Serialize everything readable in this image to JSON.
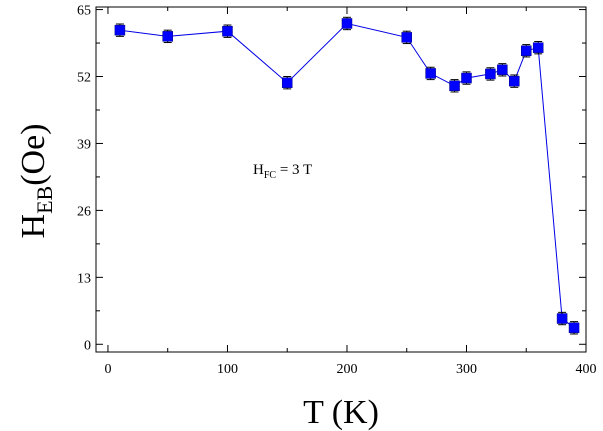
{
  "chart_data": {
    "type": "line",
    "title": "",
    "xlabel": "T (K)",
    "ylabel_main": "H",
    "ylabel_sub": "EB",
    "ylabel_tail": "(Oe)",
    "xlim": [
      -10,
      400
    ],
    "ylim": [
      -1.5,
      65.5
    ],
    "xticks": [
      0,
      100,
      200,
      300,
      400
    ],
    "yticks": [
      0,
      13,
      26,
      39,
      52,
      65
    ],
    "grid": false,
    "legend": "none",
    "marker": "square",
    "line_color": "#0000e6",
    "marker_color": "#0000ff",
    "annotation": {
      "main": "H",
      "sub": "FC",
      "tail": " = 3 T"
    },
    "series": [
      {
        "x": [
          10,
          50,
          100,
          150,
          200,
          250,
          270,
          290,
          300,
          320,
          330,
          340,
          350,
          360,
          380,
          390
        ],
        "y": [
          61.0,
          59.8,
          60.8,
          50.8,
          62.3,
          59.6,
          52.6,
          50.2,
          51.7,
          52.5,
          53.3,
          51.1,
          57.0,
          57.6,
          5.0,
          3.2
        ],
        "err": [
          1.2,
          1.2,
          1.2,
          1.2,
          1.2,
          1.2,
          1.2,
          1.2,
          1.2,
          1.2,
          1.2,
          1.2,
          1.2,
          1.2,
          1.2,
          1.2
        ]
      }
    ]
  }
}
